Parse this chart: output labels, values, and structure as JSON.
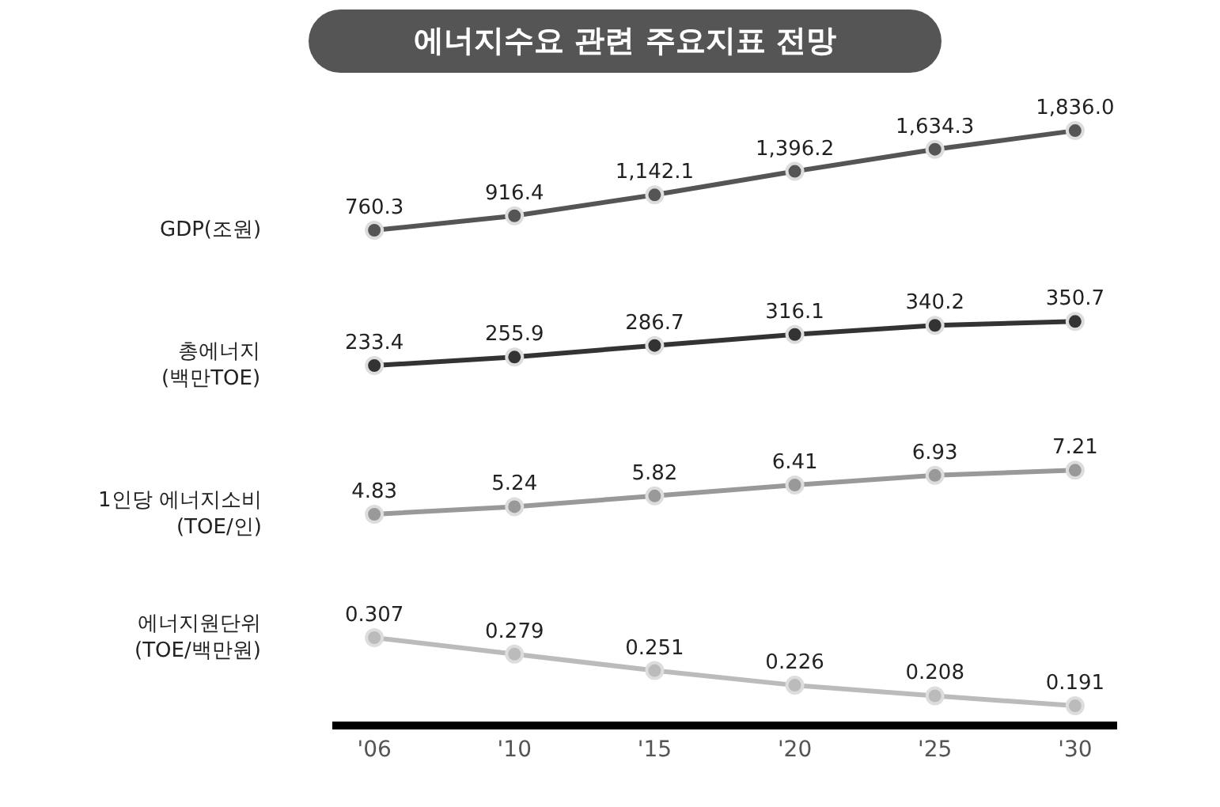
{
  "chart_data": [
    {
      "type": "line",
      "title": "에너지수요 관련 주요지표 전망",
      "categories": [
        null,
        null,
        null,
        null,
        null,
        null
      ],
      "tick_labels": false,
      "marker": "circle",
      "series": [
        {
          "name": "GDP(조원)",
          "color": "#555555",
          "values": [
            760.3,
            916.4,
            1142.1,
            1396.2,
            1634.3,
            1836.0
          ],
          "value_labels": [
            "760.3",
            "916.4",
            "1,142.1",
            "1,396.2",
            "1,634.3",
            "1,836.0"
          ]
        }
      ]
    },
    {
      "type": "line",
      "categories": [
        null,
        null,
        null,
        null,
        null,
        null
      ],
      "tick_labels": false,
      "marker": "circle",
      "series": [
        {
          "name": "총에너지\n(백만TOE)",
          "color": "#333333",
          "values": [
            233.4,
            255.9,
            286.7,
            316.1,
            340.2,
            350.7
          ],
          "value_labels": [
            "233.4",
            "255.9",
            "286.7",
            "316.1",
            "340.2",
            "350.7"
          ]
        }
      ]
    },
    {
      "type": "line",
      "categories": [
        null,
        null,
        null,
        null,
        null,
        null
      ],
      "tick_labels": false,
      "marker": "circle",
      "series": [
        {
          "name": "1인당 에너지소비\n(TOE/인)",
          "color": "#999999",
          "values": [
            4.83,
            5.24,
            5.82,
            6.41,
            6.93,
            7.21
          ],
          "value_labels": [
            "4.83",
            "5.24",
            "5.82",
            "6.41",
            "6.93",
            "7.21"
          ]
        }
      ]
    },
    {
      "type": "line",
      "categories": [
        "'06",
        "'10",
        "'15",
        "'20",
        "'25",
        "'30"
      ],
      "tick_labels": "x",
      "marker": "circle",
      "series": [
        {
          "name": "에너지원단위\n(TOE/백만원)",
          "color": "#bbbbbb",
          "values": [
            0.307,
            0.279,
            0.251,
            0.226,
            0.208,
            0.191
          ],
          "value_labels": [
            "0.307",
            "0.279",
            "0.251",
            "0.226",
            "0.208",
            "0.191"
          ]
        }
      ]
    }
  ]
}
